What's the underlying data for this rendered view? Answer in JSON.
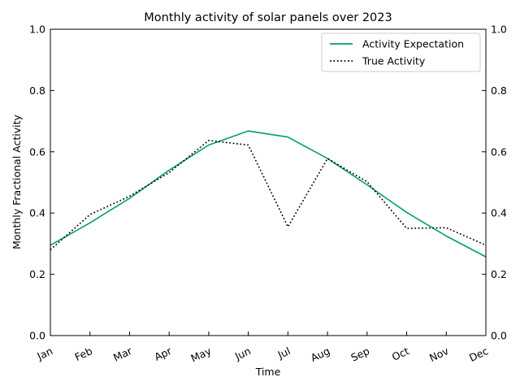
{
  "chart_data": {
    "type": "line",
    "title": "Monthly activity of solar panels over 2023",
    "xlabel": "Time",
    "ylabel": "Monthly Fractional Activity",
    "categories": [
      "Jan",
      "Feb",
      "Mar",
      "Apr",
      "May",
      "Jun",
      "Jul",
      "Aug",
      "Sep",
      "Oct",
      "Nov",
      "Dec"
    ],
    "x_tick_labels": [
      "Jan",
      "Feb",
      "Mar",
      "Apr",
      "May",
      "Jun",
      "Jul",
      "Aug",
      "Sep",
      "Oct",
      "Nov",
      "Dec"
    ],
    "ylim": [
      0.0,
      1.0
    ],
    "y_ticks": [
      0.0,
      0.2,
      0.4,
      0.6,
      0.8,
      1.0
    ],
    "y_tick_labels": [
      "0.0",
      "0.2",
      "0.4",
      "0.6",
      "0.8",
      "1.0"
    ],
    "grid": false,
    "legend_position": "top-right",
    "series": [
      {
        "name": "Activity Expectation",
        "style": "solid",
        "color": "#009e73",
        "values": [
          0.295,
          0.368,
          0.448,
          0.54,
          0.622,
          0.668,
          0.648,
          0.578,
          0.492,
          0.402,
          0.325,
          0.257
        ]
      },
      {
        "name": "True Activity",
        "style": "dotted",
        "color": "#000000",
        "values": [
          0.28,
          0.395,
          0.455,
          0.532,
          0.637,
          0.622,
          0.355,
          0.578,
          0.502,
          0.35,
          0.352,
          0.295
        ]
      }
    ]
  }
}
